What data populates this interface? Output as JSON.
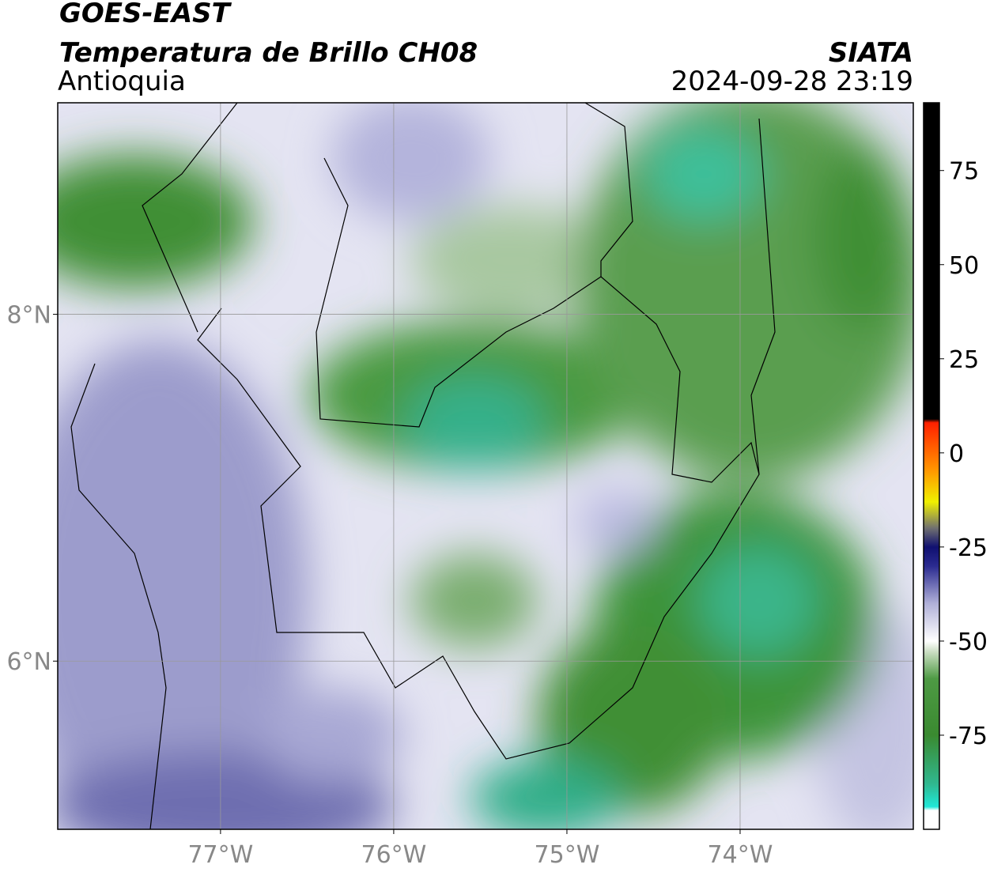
{
  "header": {
    "title": "GOES-EAST",
    "subtitle": "Temperatura de Brillo CH08",
    "region": "Antioquia",
    "organization": "SIATA",
    "timestamp": "2024-09-28 23:19"
  },
  "map": {
    "xlim": [
      -77.94,
      -73.0
    ],
    "ylim": [
      5.03,
      9.22
    ],
    "xticks": [
      {
        "value": -77,
        "label": "77°W"
      },
      {
        "value": -76,
        "label": "76°W"
      },
      {
        "value": -75,
        "label": "75°W"
      },
      {
        "value": -74,
        "label": "74°W"
      }
    ],
    "yticks": [
      {
        "value": 8,
        "label": "8°N"
      },
      {
        "value": 6,
        "label": "6°N"
      }
    ],
    "grid": true
  },
  "colorbar": {
    "lim": [
      -100,
      93
    ],
    "ticks": [
      75,
      50,
      25,
      0,
      -25,
      -50,
      -75
    ],
    "colormap": [
      {
        "value": -100,
        "color": "#ffffff"
      },
      {
        "value": -95,
        "color": "#ffffff"
      },
      {
        "value": -94,
        "color": "#20e8d8"
      },
      {
        "value": -88,
        "color": "#30b890"
      },
      {
        "value": -75,
        "color": "#3a8a30"
      },
      {
        "value": -60,
        "color": "#4e9a44"
      },
      {
        "value": -53,
        "color": "#c8dcc0"
      },
      {
        "value": -50,
        "color": "#ffffff"
      },
      {
        "value": -40,
        "color": "#b0b0d8"
      },
      {
        "value": -30,
        "color": "#2a2a90"
      },
      {
        "value": -25,
        "color": "#101070"
      },
      {
        "value": -20,
        "color": "#707070"
      },
      {
        "value": -13,
        "color": "#f0f000"
      },
      {
        "value": -5,
        "color": "#ff9a00"
      },
      {
        "value": 8,
        "color": "#ff2000"
      },
      {
        "value": 9,
        "color": "#000000"
      },
      {
        "value": 93,
        "color": "#000000"
      }
    ]
  }
}
